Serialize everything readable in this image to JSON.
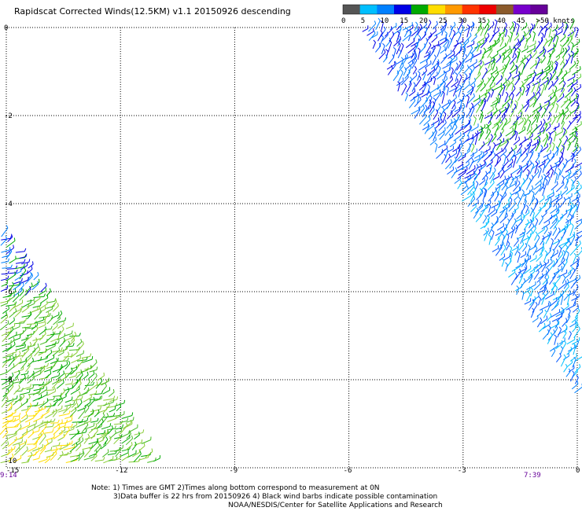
{
  "title": "Rapidscat Corrected Winds(12.5KM) v1.1 20150926 descending",
  "colorbar": {
    "colors": [
      "#555555",
      "#00bfff",
      "#0080ff",
      "#0000e6",
      "#00aa00",
      "#ffdd00",
      "#ff9900",
      "#ff3300",
      "#ee0000",
      "#8b5a2b",
      "#7700cc",
      "#660099"
    ],
    "labels": [
      "0",
      "5",
      "10",
      "15",
      "20",
      "25",
      "30",
      "35",
      "40",
      "45",
      ">50 knots"
    ]
  },
  "x_ticks": [
    "-15",
    "-12",
    "-9",
    "-6",
    "-3",
    "0"
  ],
  "y_ticks": [
    "0",
    "-2",
    "-4",
    "-6",
    "-8",
    "-10"
  ],
  "time_labels": {
    "left": "9:14",
    "right": "7:39"
  },
  "notes": [
    "Note: 1) Times are GMT 2)Times along bottom correspond to measurement at 0N",
    "3)Data buffer is 22 hrs from 20150926 4) Black wind barbs indicate possible contamination",
    "NOAA/NESDIS/Center for Satellite Applications and Research"
  ],
  "map": {
    "lon_range": [
      -15,
      0
    ],
    "lat_range": [
      -10,
      0
    ],
    "swaths": [
      {
        "name": "east-swath",
        "palette": [
          "#0000e6",
          "#0055ff",
          "#0080ff",
          "#00bfff",
          "#00aa00",
          "#55cc33"
        ]
      },
      {
        "name": "west-swath",
        "palette": [
          "#00aa00",
          "#44bb22",
          "#88cc33",
          "#ffdd00",
          "#0000e6",
          "#0080ff"
        ]
      }
    ]
  }
}
